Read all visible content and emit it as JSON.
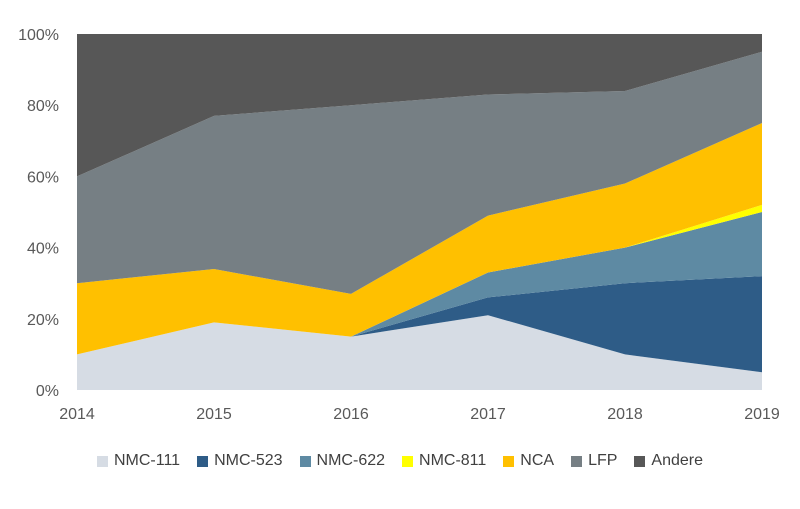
{
  "chart_data": {
    "type": "area",
    "stacked": true,
    "x": [
      "2014",
      "2015",
      "2016",
      "2017",
      "2018",
      "2019"
    ],
    "y_ticks": [
      "0%",
      "20%",
      "40%",
      "60%",
      "80%",
      "100%"
    ],
    "ylim": [
      0,
      100
    ],
    "legend_position": "bottom",
    "series": [
      {
        "name": "NMC-111",
        "color": "#d6dce4",
        "values": [
          10,
          19,
          15,
          21,
          10,
          5
        ]
      },
      {
        "name": "NMC-523",
        "color": "#2e5c87",
        "values": [
          0,
          0,
          0,
          5,
          20,
          27
        ]
      },
      {
        "name": "NMC-622",
        "color": "#5e8aa3",
        "values": [
          0,
          0,
          0,
          7,
          10,
          18
        ]
      },
      {
        "name": "NMC-811",
        "color": "#ffff00",
        "values": [
          0,
          0,
          0,
          0,
          0,
          2
        ]
      },
      {
        "name": "NCA",
        "color": "#ffc000",
        "values": [
          20,
          15,
          12,
          16,
          18,
          23
        ]
      },
      {
        "name": "LFP",
        "color": "#767f84",
        "values": [
          30,
          43,
          53,
          34,
          26,
          20
        ]
      },
      {
        "name": "Andere",
        "color": "#575757",
        "values": [
          40,
          23,
          20,
          17,
          16,
          5
        ]
      }
    ]
  }
}
